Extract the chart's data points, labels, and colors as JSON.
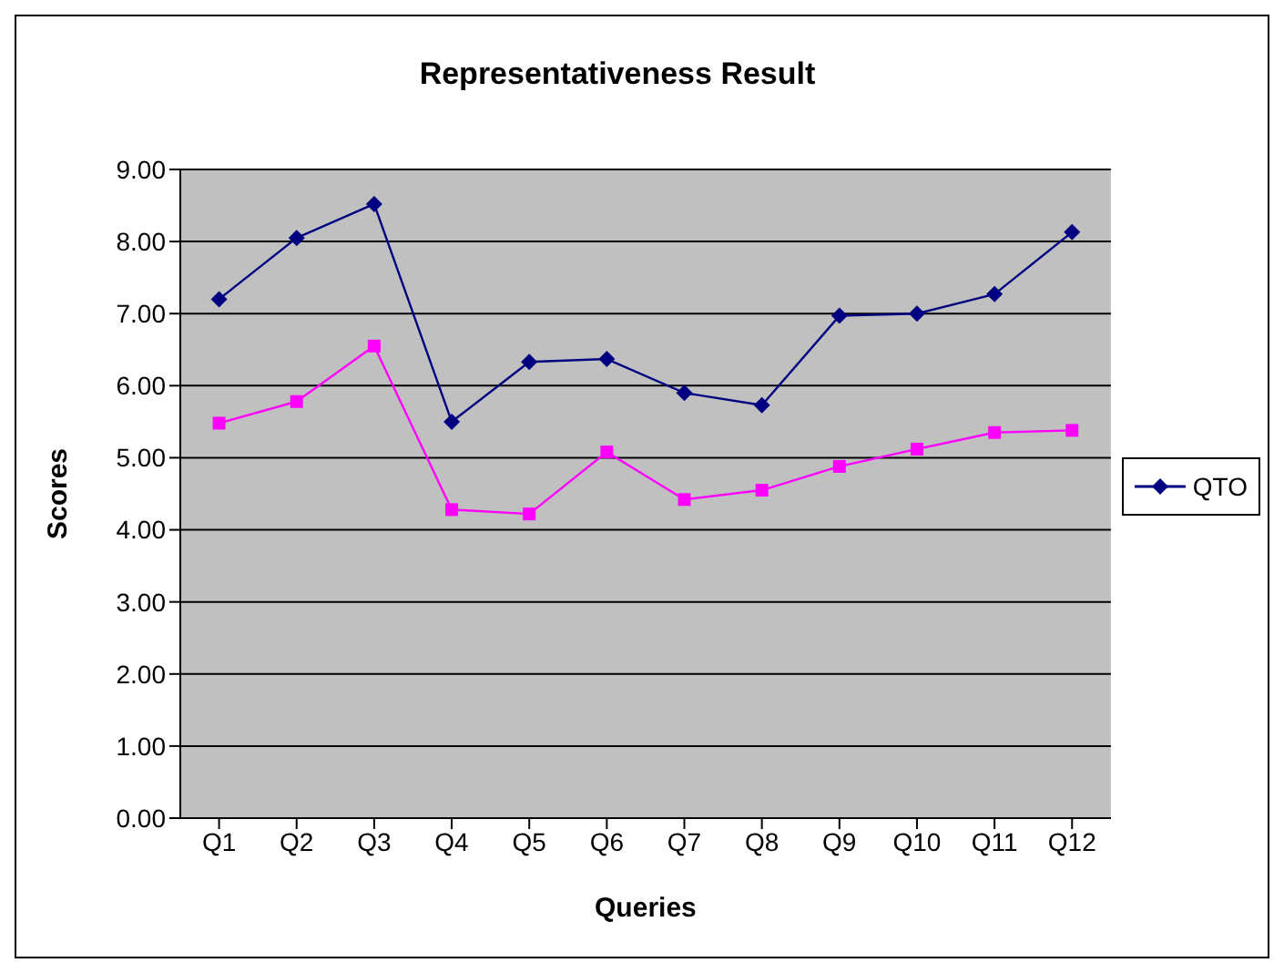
{
  "chart_data": {
    "type": "line",
    "title": "Representativeness Result",
    "xlabel": "Queries",
    "ylabel": "Scores",
    "categories": [
      "Q1",
      "Q2",
      "Q3",
      "Q4",
      "Q5",
      "Q6",
      "Q7",
      "Q8",
      "Q9",
      "Q10",
      "Q11",
      "Q12"
    ],
    "series": [
      {
        "name": "QTO",
        "color": "#000080",
        "marker": "diamond",
        "values": [
          7.2,
          8.05,
          8.52,
          5.5,
          6.33,
          6.37,
          5.9,
          5.73,
          6.97,
          7.0,
          7.27,
          8.13
        ]
      },
      {
        "color": "#ff00ff",
        "marker": "square",
        "values": [
          5.48,
          5.78,
          6.55,
          4.28,
          4.22,
          5.08,
          4.42,
          4.55,
          4.88,
          5.12,
          5.35,
          5.38
        ]
      }
    ],
    "ylim": [
      0,
      9
    ],
    "yticks": [
      {
        "value": 0,
        "label": "0.00"
      },
      {
        "value": 1,
        "label": "1.00"
      },
      {
        "value": 2,
        "label": "2.00"
      },
      {
        "value": 3,
        "label": "3.00"
      },
      {
        "value": 4,
        "label": "4.00"
      },
      {
        "value": 5,
        "label": "5.00"
      },
      {
        "value": 6,
        "label": "6.00"
      },
      {
        "value": 7,
        "label": "7.00"
      },
      {
        "value": 8,
        "label": "8.00"
      },
      {
        "value": 9,
        "label": "9.00"
      }
    ],
    "grid": "y",
    "legend": "right",
    "line_style": "solid"
  }
}
